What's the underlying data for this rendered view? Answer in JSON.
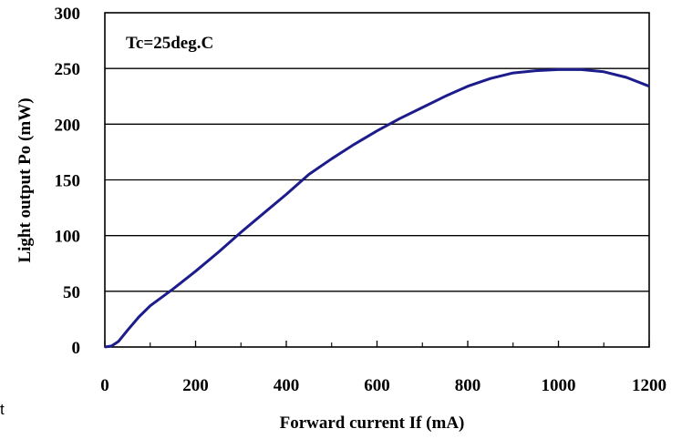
{
  "chart_data": {
    "type": "line",
    "xlabel": "Forward current If (mA)",
    "ylabel": "Light output Po (mW)",
    "xlim": [
      0,
      1200
    ],
    "ylim": [
      0,
      300
    ],
    "xticks": [
      "0",
      "200",
      "400",
      "600",
      "800",
      "1000",
      "1200"
    ],
    "yticks": [
      "0",
      "50",
      "100",
      "150",
      "200",
      "250",
      "300"
    ],
    "grid": "horizontal",
    "annotation": "Tc=25deg.C",
    "series": [
      {
        "color": "#1c1c8c",
        "x": [
          0,
          15,
          30,
          50,
          75,
          100,
          150,
          200,
          250,
          300,
          350,
          400,
          450,
          500,
          550,
          600,
          650,
          700,
          750,
          800,
          850,
          900,
          950,
          1000,
          1050,
          1100,
          1150,
          1200
        ],
        "y": [
          0,
          1,
          5,
          15,
          27,
          37,
          52,
          68,
          85,
          103,
          120,
          137,
          155,
          169,
          182,
          194,
          205,
          215,
          225,
          234,
          241,
          246,
          248,
          249,
          249,
          247,
          242,
          234
        ]
      }
    ]
  },
  "stray_text": "t"
}
